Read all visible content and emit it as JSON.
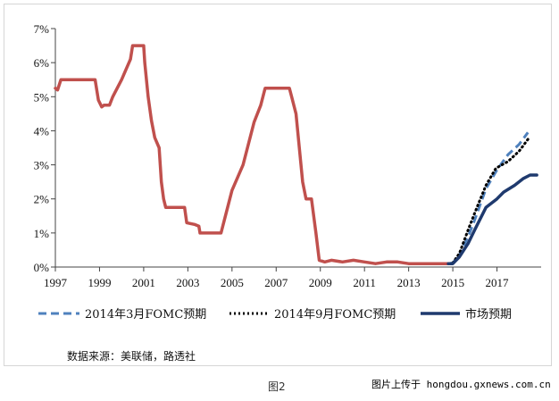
{
  "chart_data": {
    "type": "line",
    "title": "",
    "xlabel": "",
    "ylabel": "",
    "xlim": [
      1997,
      2019
    ],
    "ylim": [
      0,
      7
    ],
    "x_ticks": [
      "1997",
      "1999",
      "2001",
      "2003",
      "2005",
      "2007",
      "2009",
      "2011",
      "2013",
      "2015",
      "2017"
    ],
    "x_tick_values": [
      1997,
      1999,
      2001,
      2003,
      2005,
      2007,
      2009,
      2011,
      2013,
      2015,
      2017
    ],
    "y_ticks": [
      "0%",
      "1%",
      "2%",
      "3%",
      "4%",
      "5%",
      "6%",
      "7%"
    ],
    "y_tick_values": [
      0,
      1,
      2,
      3,
      4,
      5,
      6,
      7
    ],
    "grid": false,
    "legend_position": "bottom",
    "series": [
      {
        "name": "",
        "color": "#c0504d",
        "style": "solid",
        "points": [
          [
            1997.0,
            5.25
          ],
          [
            1997.1,
            5.2
          ],
          [
            1997.25,
            5.5
          ],
          [
            1997.5,
            5.5
          ],
          [
            1997.75,
            5.5
          ],
          [
            1998.0,
            5.5
          ],
          [
            1998.3,
            5.5
          ],
          [
            1998.55,
            5.5
          ],
          [
            1998.8,
            5.5
          ],
          [
            1998.95,
            4.9
          ],
          [
            1999.1,
            4.7
          ],
          [
            1999.2,
            4.75
          ],
          [
            1999.45,
            4.75
          ],
          [
            1999.6,
            5.0
          ],
          [
            1999.8,
            5.25
          ],
          [
            2000.0,
            5.5
          ],
          [
            2000.2,
            5.8
          ],
          [
            2000.4,
            6.1
          ],
          [
            2000.5,
            6.5
          ],
          [
            2000.75,
            6.5
          ],
          [
            2001.0,
            6.5
          ],
          [
            2001.05,
            6.0
          ],
          [
            2001.2,
            5.0
          ],
          [
            2001.35,
            4.3
          ],
          [
            2001.5,
            3.8
          ],
          [
            2001.7,
            3.5
          ],
          [
            2001.8,
            2.5
          ],
          [
            2001.9,
            2.0
          ],
          [
            2002.0,
            1.75
          ],
          [
            2002.5,
            1.75
          ],
          [
            2002.85,
            1.75
          ],
          [
            2002.95,
            1.3
          ],
          [
            2003.3,
            1.25
          ],
          [
            2003.5,
            1.2
          ],
          [
            2003.55,
            1.0
          ],
          [
            2004.0,
            1.0
          ],
          [
            2004.5,
            1.0
          ],
          [
            2005.0,
            2.25
          ],
          [
            2005.5,
            3.0
          ],
          [
            2006.0,
            4.25
          ],
          [
            2006.3,
            4.75
          ],
          [
            2006.5,
            5.25
          ],
          [
            2007.0,
            5.25
          ],
          [
            2007.6,
            5.25
          ],
          [
            2007.7,
            5.0
          ],
          [
            2007.9,
            4.5
          ],
          [
            2008.05,
            3.5
          ],
          [
            2008.2,
            2.5
          ],
          [
            2008.35,
            2.0
          ],
          [
            2008.6,
            2.0
          ],
          [
            2008.8,
            1.0
          ],
          [
            2008.95,
            0.2
          ],
          [
            2009.2,
            0.15
          ],
          [
            2009.5,
            0.2
          ],
          [
            2010.0,
            0.15
          ],
          [
            2010.5,
            0.2
          ],
          [
            2011.0,
            0.15
          ],
          [
            2011.5,
            0.1
          ],
          [
            2012.0,
            0.15
          ],
          [
            2012.5,
            0.15
          ],
          [
            2013.0,
            0.1
          ],
          [
            2013.5,
            0.1
          ],
          [
            2014.0,
            0.1
          ],
          [
            2014.5,
            0.1
          ],
          [
            2014.8,
            0.1
          ]
        ]
      },
      {
        "name": "2014年3月FOMC预期",
        "color": "#4f81bd",
        "style": "dashed",
        "points": [
          [
            2014.8,
            0.1
          ],
          [
            2015.0,
            0.12
          ],
          [
            2015.3,
            0.35
          ],
          [
            2015.7,
            0.9
          ],
          [
            2016.0,
            1.4
          ],
          [
            2016.5,
            2.3
          ],
          [
            2017.0,
            2.85
          ],
          [
            2017.5,
            3.3
          ],
          [
            2018.0,
            3.6
          ],
          [
            2018.4,
            3.95
          ]
        ]
      },
      {
        "name": "2014年9月FOMC预期",
        "color": "#000000",
        "style": "dotted",
        "points": [
          [
            2014.8,
            0.1
          ],
          [
            2015.0,
            0.12
          ],
          [
            2015.3,
            0.4
          ],
          [
            2015.7,
            1.1
          ],
          [
            2016.0,
            1.6
          ],
          [
            2016.5,
            2.4
          ],
          [
            2016.95,
            2.9
          ],
          [
            2017.5,
            3.1
          ],
          [
            2018.0,
            3.4
          ],
          [
            2018.4,
            3.75
          ]
        ]
      },
      {
        "name": "市场预期",
        "color": "#1f3a6e",
        "style": "solid",
        "points": [
          [
            2014.8,
            0.1
          ],
          [
            2015.0,
            0.1
          ],
          [
            2015.3,
            0.3
          ],
          [
            2015.7,
            0.7
          ],
          [
            2016.0,
            1.1
          ],
          [
            2016.5,
            1.75
          ],
          [
            2017.0,
            2.0
          ],
          [
            2017.3,
            2.2
          ],
          [
            2017.8,
            2.4
          ],
          [
            2018.2,
            2.6
          ],
          [
            2018.5,
            2.7
          ],
          [
            2018.8,
            2.7
          ]
        ]
      }
    ]
  },
  "source_note": "数据来源：美联储，路透社",
  "figure_caption": "图2",
  "watermark": "图片上传于 hongdou.gxnews.com.cn"
}
